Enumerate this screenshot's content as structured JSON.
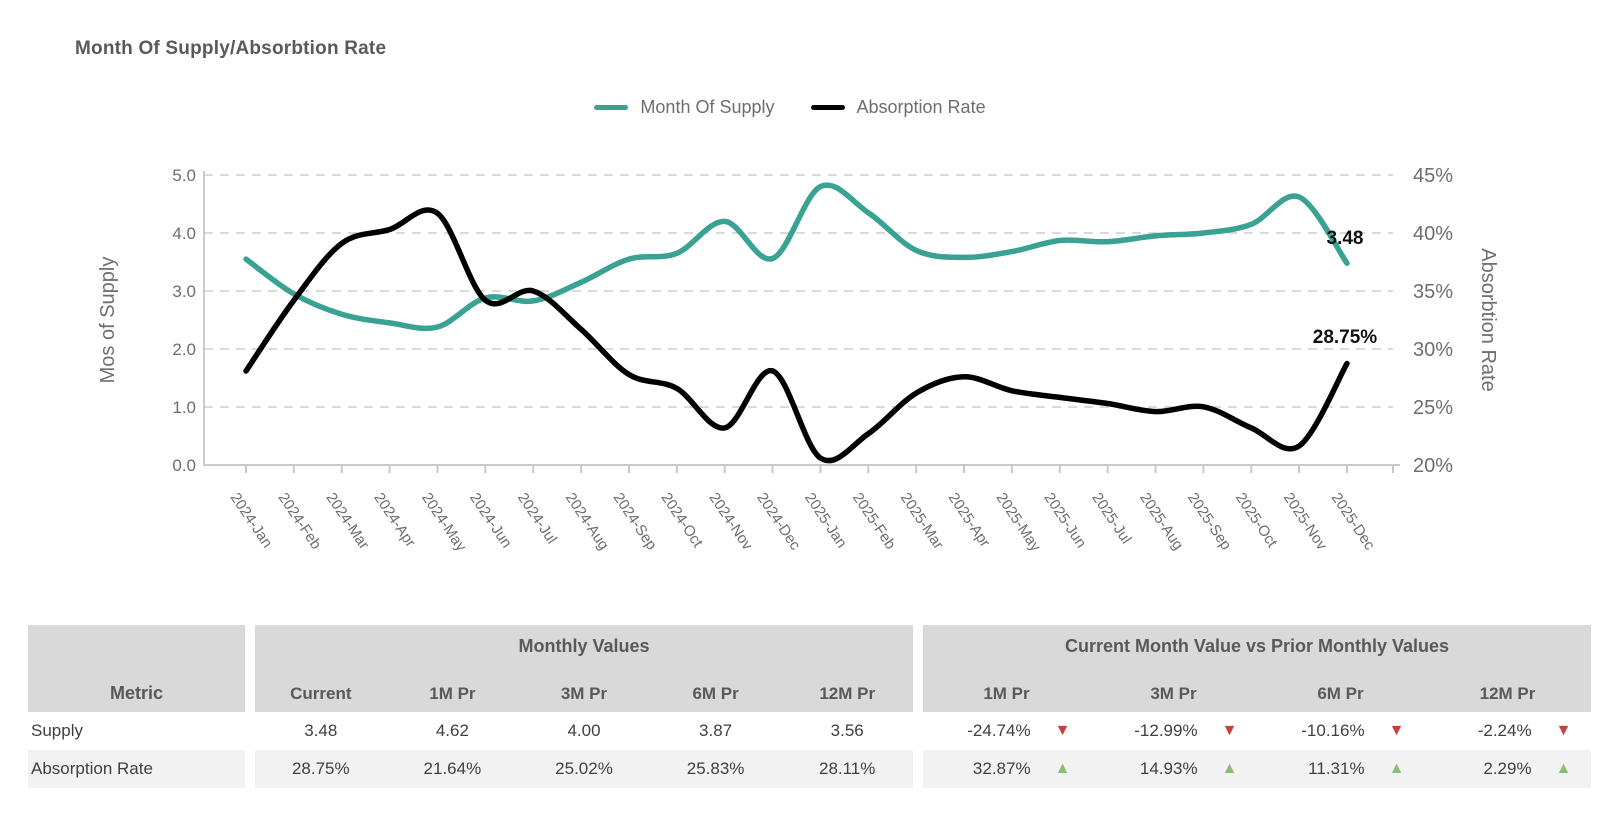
{
  "title": "Month Of Supply/Absorbtion Rate",
  "legend": [
    {
      "label": "Month Of Supply",
      "color": "#39A293"
    },
    {
      "label": "Absorption Rate",
      "color": "#000000"
    }
  ],
  "chart_data": {
    "type": "line",
    "x": [
      "2024-Jan",
      "2024-Feb",
      "2024-Mar",
      "2024-Apr",
      "2024-May",
      "2024-Jun",
      "2024-Jul",
      "2024-Aug",
      "2024-Sep",
      "2024-Oct",
      "2024-Nov",
      "2024-Dec",
      "2025-Jan",
      "2025-Feb",
      "2025-Mar",
      "2025-Apr",
      "2025-May",
      "2025-Jun",
      "2025-Jul",
      "2025-Aug",
      "2025-Sep",
      "2025-Oct",
      "2025-Nov",
      "2025-Dec"
    ],
    "series": [
      {
        "name": "Month Of Supply",
        "axis": "left",
        "color": "#39A293",
        "values": [
          3.55,
          2.95,
          2.6,
          2.45,
          2.38,
          2.88,
          2.83,
          3.15,
          3.55,
          3.65,
          4.2,
          3.56,
          4.8,
          4.35,
          3.7,
          3.58,
          3.68,
          3.87,
          3.85,
          3.95,
          4.0,
          4.15,
          4.62,
          3.48
        ]
      },
      {
        "name": "Absorption Rate",
        "axis": "right",
        "color": "#000000",
        "values": [
          28.1,
          34.2,
          39.1,
          40.3,
          41.7,
          34.2,
          35.0,
          31.7,
          27.8,
          26.6,
          23.2,
          28.11,
          20.6,
          22.7,
          26.2,
          27.6,
          26.4,
          25.83,
          25.3,
          24.6,
          25.02,
          23.2,
          21.64,
          28.75
        ]
      }
    ],
    "left_axis": {
      "title": "Mos of Supply",
      "ticks": [
        "0.0",
        "1.0",
        "2.0",
        "3.0",
        "4.0",
        "5.0"
      ],
      "range": [
        0,
        5
      ]
    },
    "right_axis": {
      "title": "Absorbtion Rate",
      "ticks": [
        "20%",
        "25%",
        "30%",
        "35%",
        "40%",
        "45%"
      ],
      "range": [
        20,
        45
      ]
    },
    "end_labels": [
      {
        "text": "3.48",
        "series": "Month Of Supply"
      },
      {
        "text": "28.75%",
        "series": "Absorption Rate"
      }
    ],
    "grid": "dashed-horizontal",
    "legend_position": "top-center",
    "smooth": true,
    "x_label_rotation_deg": 56
  },
  "table": {
    "metric_header": "Metric",
    "groups": [
      {
        "label": "Monthly Values",
        "cols": [
          "Current",
          "1M Pr",
          "3M Pr",
          "6M Pr",
          "12M Pr"
        ]
      },
      {
        "label": "Current Month Value vs Prior Monthly Values",
        "cols": [
          "1M Pr",
          "3M Pr",
          "6M Pr",
          "12M Pr"
        ]
      }
    ],
    "rows": [
      {
        "metric": "Supply",
        "monthly": [
          "3.48",
          "4.62",
          "4.00",
          "3.87",
          "3.56"
        ],
        "deltas": [
          {
            "value": "-24.74%",
            "dir": "down"
          },
          {
            "value": "-12.99%",
            "dir": "down"
          },
          {
            "value": "-10.16%",
            "dir": "down"
          },
          {
            "value": "-2.24%",
            "dir": "down"
          }
        ]
      },
      {
        "metric": "Absorption Rate",
        "monthly": [
          "28.75%",
          "21.64%",
          "25.02%",
          "25.83%",
          "28.11%"
        ],
        "deltas": [
          {
            "value": "32.87%",
            "dir": "up"
          },
          {
            "value": "14.93%",
            "dir": "up"
          },
          {
            "value": "11.31%",
            "dir": "up"
          },
          {
            "value": "2.29%",
            "dir": "up"
          }
        ]
      }
    ],
    "icons": {
      "up": "▲",
      "down": "▼"
    },
    "colors": {
      "header_bg": "#D9D9D9",
      "row_alt_bg": "#F2F2F2",
      "up": "#8ABD74",
      "down": "#C2413C"
    }
  }
}
